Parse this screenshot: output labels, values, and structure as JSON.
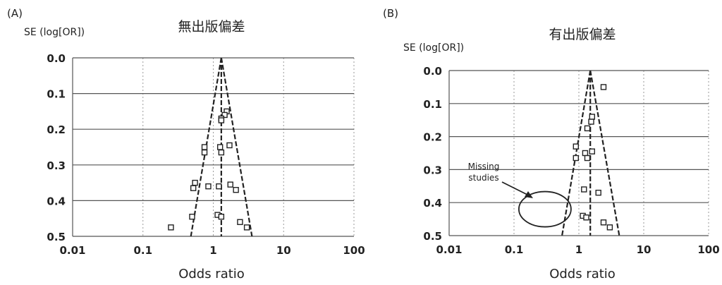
{
  "chart_data": [
    {
      "panel_label": "(A)",
      "title": "無出版偏差",
      "type": "scatter",
      "ylabel": "SE (log[OR])",
      "xlabel": "Odds ratio",
      "x_scale": "log",
      "xlim": [
        0.01,
        100
      ],
      "ylim": [
        0.0,
        0.5
      ],
      "y_inverted": true,
      "x_ticks": [
        "0.01",
        "0.1",
        "1",
        "10",
        "100"
      ],
      "y_ticks": [
        "0.0",
        "0.1",
        "0.2",
        "0.3",
        "0.4",
        "0.5"
      ],
      "grid": "horizontal solid, vertical dotted",
      "funnel": {
        "center_or": 1.3,
        "apex_se": 0.0,
        "bottom_se": 0.5,
        "left_or_at_bottom": 0.48,
        "right_or_at_bottom": 3.55
      },
      "points": [
        {
          "x": 1.55,
          "y": 0.15
        },
        {
          "x": 1.45,
          "y": 0.16
        },
        {
          "x": 1.3,
          "y": 0.17
        },
        {
          "x": 1.3,
          "y": 0.175
        },
        {
          "x": 0.75,
          "y": 0.25
        },
        {
          "x": 0.75,
          "y": 0.265
        },
        {
          "x": 1.25,
          "y": 0.25
        },
        {
          "x": 1.3,
          "y": 0.265
        },
        {
          "x": 1.7,
          "y": 0.245
        },
        {
          "x": 0.55,
          "y": 0.35
        },
        {
          "x": 0.52,
          "y": 0.365
        },
        {
          "x": 0.85,
          "y": 0.36
        },
        {
          "x": 1.2,
          "y": 0.36
        },
        {
          "x": 1.75,
          "y": 0.355
        },
        {
          "x": 2.1,
          "y": 0.37
        },
        {
          "x": 0.5,
          "y": 0.445
        },
        {
          "x": 1.15,
          "y": 0.44
        },
        {
          "x": 1.3,
          "y": 0.445
        },
        {
          "x": 0.25,
          "y": 0.475
        },
        {
          "x": 2.4,
          "y": 0.46
        },
        {
          "x": 3.0,
          "y": 0.475
        }
      ]
    },
    {
      "panel_label": "(B)",
      "title": "有出版偏差",
      "type": "scatter",
      "ylabel": "SE (log[OR])",
      "xlabel": "Odds ratio",
      "x_scale": "log",
      "xlim": [
        0.01,
        100
      ],
      "ylim": [
        0.0,
        0.5
      ],
      "y_inverted": true,
      "x_ticks": [
        "0.01",
        "0.1",
        "1",
        "10",
        "100"
      ],
      "y_ticks": [
        "0.0",
        "0.1",
        "0.2",
        "0.3",
        "0.4",
        "0.5"
      ],
      "grid": "horizontal solid, vertical dotted",
      "funnel": {
        "center_or": 1.5,
        "apex_se": 0.0,
        "bottom_se": 0.5,
        "left_or_at_bottom": 0.55,
        "right_or_at_bottom": 4.2
      },
      "annotation": {
        "text": "Missing studies",
        "ellipse_center": [
          0.3,
          0.42
        ]
      },
      "points": [
        {
          "x": 2.4,
          "y": 0.05
        },
        {
          "x": 1.6,
          "y": 0.14
        },
        {
          "x": 1.55,
          "y": 0.155
        },
        {
          "x": 1.35,
          "y": 0.175
        },
        {
          "x": 0.9,
          "y": 0.23
        },
        {
          "x": 0.9,
          "y": 0.265
        },
        {
          "x": 1.25,
          "y": 0.25
        },
        {
          "x": 1.35,
          "y": 0.265
        },
        {
          "x": 1.6,
          "y": 0.245
        },
        {
          "x": 1.2,
          "y": 0.36
        },
        {
          "x": 2.0,
          "y": 0.37
        },
        {
          "x": 1.15,
          "y": 0.44
        },
        {
          "x": 1.3,
          "y": 0.445
        },
        {
          "x": 2.4,
          "y": 0.46
        },
        {
          "x": 3.0,
          "y": 0.475
        }
      ]
    }
  ]
}
